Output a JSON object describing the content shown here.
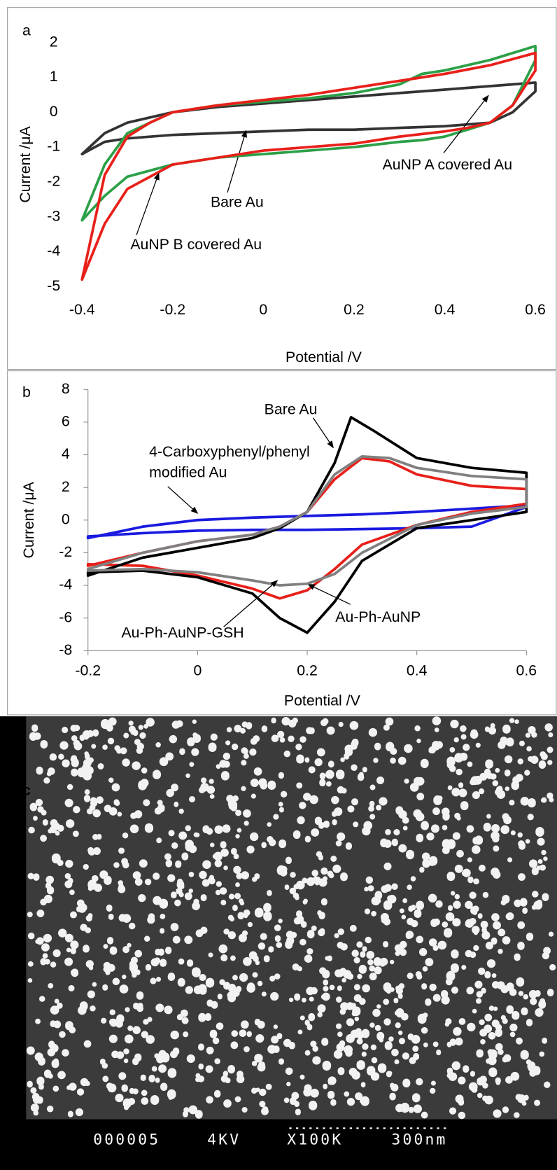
{
  "chart_data": [
    {
      "type": "line",
      "label": "a",
      "x_label": "Potential /V",
      "y_label": "Current /μA",
      "xlim": [
        -0.4,
        0.6
      ],
      "xticks": [
        -0.4,
        -0.2,
        0,
        0.2,
        0.4,
        0.6
      ],
      "ylim": [
        -5,
        2
      ],
      "yticks": [
        -5,
        -4,
        -3,
        -2,
        -1,
        0,
        1,
        2
      ],
      "axis_lines": false,
      "series": [
        {
          "name": "Bare Au",
          "color": "#333333",
          "x": [
            -0.4,
            -0.35,
            -0.3,
            -0.2,
            -0.1,
            0,
            0.1,
            0.2,
            0.3,
            0.4,
            0.5,
            0.6,
            0.6,
            0.55,
            0.5,
            0.4,
            0.3,
            0.2,
            0.1,
            0,
            -0.1,
            -0.2,
            -0.3,
            -0.35,
            -0.4
          ],
          "values": [
            -1.2,
            -0.6,
            -0.3,
            0,
            0.15,
            0.25,
            0.35,
            0.45,
            0.55,
            0.65,
            0.75,
            0.85,
            0.6,
            0.0,
            -0.3,
            -0.4,
            -0.45,
            -0.5,
            -0.5,
            -0.55,
            -0.6,
            -0.65,
            -0.75,
            -0.85,
            -1.2
          ]
        },
        {
          "name": "AuNP A covered Au",
          "color": "#2ca048",
          "x": [
            -0.4,
            -0.35,
            -0.3,
            -0.2,
            -0.1,
            0,
            0.1,
            0.2,
            0.3,
            0.35,
            0.4,
            0.5,
            0.6,
            0.6,
            0.55,
            0.5,
            0.45,
            0.4,
            0.35,
            0.3,
            0.2,
            0.1,
            0,
            -0.1,
            -0.2,
            -0.3,
            -0.35,
            -0.4
          ],
          "values": [
            -3.1,
            -1.5,
            -0.6,
            0,
            0.2,
            0.3,
            0.4,
            0.55,
            0.8,
            1.1,
            1.2,
            1.5,
            1.9,
            1.5,
            0.2,
            -0.3,
            -0.5,
            -0.7,
            -0.8,
            -0.85,
            -1.0,
            -1.1,
            -1.2,
            -1.3,
            -1.5,
            -1.85,
            -2.4,
            -3.1
          ]
        },
        {
          "name": "AuNP B covered Au",
          "color": "#e8201a",
          "x": [
            -0.4,
            -0.35,
            -0.3,
            -0.25,
            -0.2,
            -0.1,
            0,
            0.1,
            0.2,
            0.3,
            0.4,
            0.5,
            0.6,
            0.6,
            0.55,
            0.5,
            0.45,
            0.4,
            0.3,
            0.2,
            0.1,
            0,
            -0.1,
            -0.2,
            -0.3,
            -0.35,
            -0.4
          ],
          "values": [
            -4.8,
            -1.8,
            -0.7,
            -0.3,
            0,
            0.2,
            0.35,
            0.5,
            0.7,
            0.9,
            1.1,
            1.35,
            1.7,
            1.2,
            0.2,
            -0.3,
            -0.45,
            -0.55,
            -0.7,
            -0.9,
            -1.0,
            -1.1,
            -1.3,
            -1.5,
            -2.2,
            -3.2,
            -4.8
          ]
        }
      ]
    },
    {
      "type": "line",
      "label": "b",
      "x_label": "Potential /V",
      "y_label": "Current /μA",
      "xlim": [
        -0.2,
        0.6
      ],
      "xticks": [
        -0.2,
        0,
        0.2,
        0.4,
        0.6
      ],
      "ylim": [
        -8,
        8
      ],
      "yticks": [
        -8,
        -6,
        -4,
        -2,
        0,
        2,
        4,
        6,
        8
      ],
      "axis_lines": true,
      "series": [
        {
          "name": "4-Carboxyphenyl/phenyl\nmodified Au",
          "color": "#1a1ae0",
          "x": [
            -0.2,
            -0.1,
            0,
            0.1,
            0.2,
            0.3,
            0.4,
            0.5,
            0.6,
            0.6,
            0.5,
            0.4,
            0.3,
            0.2,
            0.1,
            0,
            -0.1,
            -0.2
          ],
          "values": [
            -1.1,
            -0.4,
            0.0,
            0.15,
            0.25,
            0.35,
            0.5,
            0.7,
            0.9,
            0.8,
            -0.4,
            -0.5,
            -0.55,
            -0.6,
            -0.6,
            -0.65,
            -0.8,
            -1.0
          ]
        },
        {
          "name": "Au-Ph-AuNP",
          "color": "#e8201a",
          "x": [
            -0.2,
            -0.1,
            0,
            0.1,
            0.15,
            0.2,
            0.25,
            0.3,
            0.35,
            0.4,
            0.5,
            0.6,
            0.6,
            0.5,
            0.4,
            0.3,
            0.25,
            0.2,
            0.15,
            0.1,
            0,
            -0.1,
            -0.2
          ],
          "values": [
            -2.8,
            -2.0,
            -1.3,
            -0.9,
            -0.4,
            0.5,
            2.5,
            3.8,
            3.6,
            2.8,
            2.1,
            1.9,
            1.0,
            0.5,
            -0.3,
            -1.5,
            -3.0,
            -4.3,
            -4.8,
            -4.2,
            -3.4,
            -2.8,
            -2.7
          ]
        },
        {
          "name": "Bare Au",
          "color": "#000000",
          "x": [
            -0.2,
            -0.1,
            0,
            0.1,
            0.15,
            0.2,
            0.25,
            0.28,
            0.32,
            0.4,
            0.5,
            0.6,
            0.6,
            0.5,
            0.4,
            0.3,
            0.25,
            0.2,
            0.15,
            0.1,
            0,
            -0.1,
            -0.2
          ],
          "values": [
            -3.4,
            -2.3,
            -1.7,
            -1.1,
            -0.5,
            0.5,
            3.5,
            6.3,
            5.5,
            3.8,
            3.2,
            2.9,
            0.5,
            0.0,
            -0.5,
            -2.5,
            -5.0,
            -6.9,
            -6.0,
            -4.5,
            -3.5,
            -3.1,
            -3.2
          ]
        },
        {
          "name": "Au-Ph-AuNP-GSH",
          "color": "#808080",
          "x": [
            -0.2,
            -0.1,
            0,
            0.1,
            0.15,
            0.2,
            0.25,
            0.3,
            0.35,
            0.4,
            0.5,
            0.6,
            0.6,
            0.5,
            0.4,
            0.3,
            0.25,
            0.2,
            0.15,
            0.1,
            0,
            -0.1,
            -0.2
          ],
          "values": [
            -3.0,
            -2.0,
            -1.3,
            -0.9,
            -0.4,
            0.5,
            2.8,
            3.9,
            3.8,
            3.2,
            2.7,
            2.5,
            0.8,
            0.4,
            -0.3,
            -2.0,
            -3.3,
            -3.9,
            -4.0,
            -3.7,
            -3.2,
            -3.0,
            -3.1
          ]
        }
      ]
    }
  ],
  "micrograph": {
    "label": "c",
    "footer": [
      "000005",
      "4KV",
      "X100K",
      "300nm"
    ]
  }
}
